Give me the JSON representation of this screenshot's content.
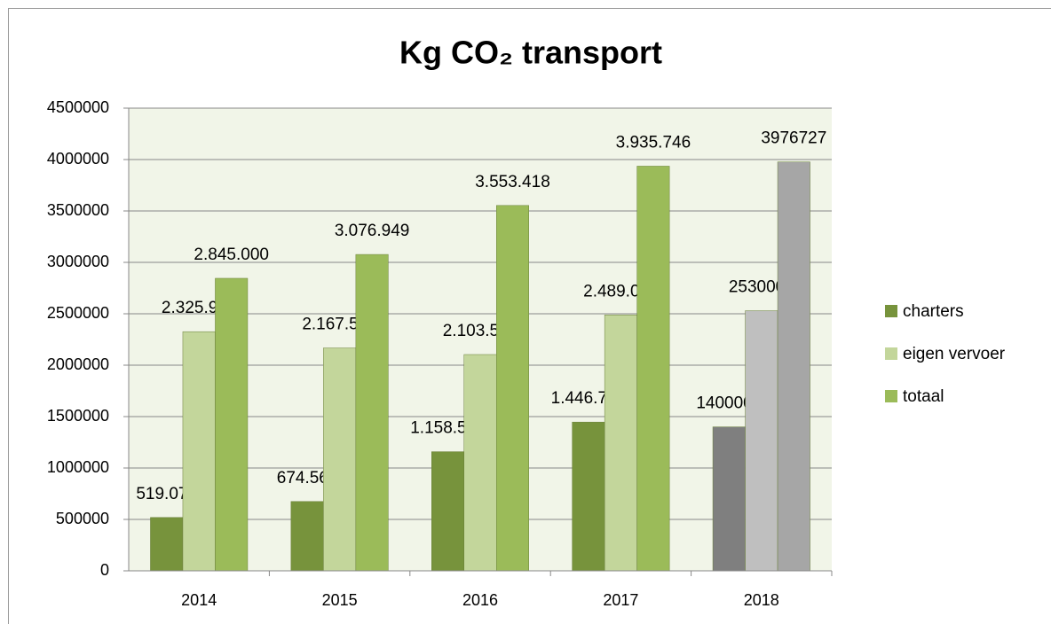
{
  "chart_data": {
    "type": "bar",
    "title": "Kg CO₂ transport",
    "categories": [
      "2014",
      "2015",
      "2016",
      "2017",
      "2018"
    ],
    "series": [
      {
        "name": "charters",
        "color": "#77933c",
        "colors": [
          "#77933c",
          "#77933c",
          "#77933c",
          "#77933c",
          "#7f7f7f"
        ],
        "values": [
          519075,
          674568,
          1158555,
          1446727,
          1400000
        ],
        "value_labels": [
          "519.075",
          "674.568",
          "1.158.555",
          "1.446.727",
          "1400000"
        ]
      },
      {
        "name": "eigen vervoer",
        "color": "#c3d69b",
        "colors": [
          "#c3d69b",
          "#c3d69b",
          "#c3d69b",
          "#c3d69b",
          "#bfbfbf"
        ],
        "values": [
          2325924,
          2167523,
          2103550,
          2489020,
          2530000
        ],
        "value_labels": [
          "2.325.924",
          "2.167.523",
          "2.103.550",
          "2.489.020",
          "2530000"
        ]
      },
      {
        "name": "totaal",
        "color": "#9bbb59",
        "colors": [
          "#9bbb59",
          "#9bbb59",
          "#9bbb59",
          "#9bbb59",
          "#a6a6a6"
        ],
        "values": [
          2845000,
          3076949,
          3553418,
          3935746,
          3976727
        ],
        "value_labels": [
          "2.845.000",
          "3.076.949",
          "3.553.418",
          "3.935.746",
          "3976727"
        ]
      }
    ],
    "ylim": [
      0,
      4500000
    ],
    "yticks": [
      0,
      500000,
      1000000,
      1500000,
      2000000,
      2500000,
      3000000,
      3500000,
      4000000,
      4500000
    ],
    "grid": true,
    "legend": "right"
  }
}
